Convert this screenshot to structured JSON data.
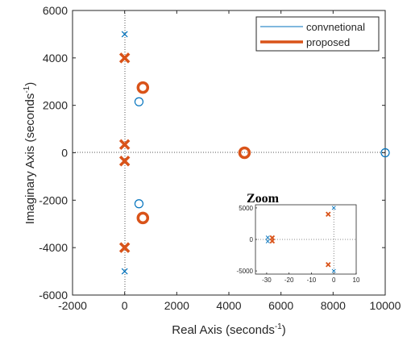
{
  "chart_data": [
    {
      "type": "scatter",
      "xlabel": "Real Axis (seconds",
      "ylabel": "Imaginary Axis (seconds",
      "label_unit_exponent": "-1",
      "xlim": [
        -2000,
        10000
      ],
      "ylim": [
        -6000,
        6000
      ],
      "xticks": [
        "-2000",
        "0",
        "2000",
        "4000",
        "6000",
        "8000",
        "10000"
      ],
      "yticks": [
        "6000",
        "4000",
        "2000",
        "0",
        "-2000",
        "-4000",
        "-6000"
      ],
      "legend_position": "top-right",
      "reference_lines": "dotted lines at x = 0 and y = 0",
      "series": [
        {
          "name": "convnetional",
          "color": "#0072BD",
          "poles": [
            [
              0,
              5000
            ],
            [
              0,
              -5000
            ]
          ],
          "zeros": [
            [
              550,
              2150
            ],
            [
              550,
              -2150
            ],
            [
              10000,
              0
            ]
          ]
        },
        {
          "name": "proposed",
          "color": "#D95319",
          "poles": [
            [
              0,
              4000
            ],
            [
              0,
              350
            ],
            [
              0,
              -350
            ],
            [
              0,
              -4000
            ]
          ],
          "zeros": [
            [
              700,
              2750
            ],
            [
              700,
              -2750
            ],
            [
              4600,
              0
            ]
          ]
        }
      ]
    },
    {
      "type": "scatter",
      "title": "Zoom",
      "xlim": [
        -35,
        10
      ],
      "ylim": [
        -5500,
        5500
      ],
      "xticks": [
        "-30",
        "-20",
        "-10",
        "0",
        "10"
      ],
      "yticks": [
        "5000",
        "0",
        "-5000"
      ],
      "series": [
        {
          "name": "convnetional",
          "color": "#0072BD",
          "poles": [
            [
              -29.5,
              300
            ],
            [
              -29.5,
              -300
            ],
            [
              0,
              5000
            ],
            [
              0,
              -5000
            ]
          ]
        },
        {
          "name": "proposed",
          "color": "#D95319",
          "poles": [
            [
              -27.5,
              250
            ],
            [
              -27.5,
              -250
            ],
            [
              -2.5,
              4000
            ],
            [
              -2.5,
              -4000
            ]
          ]
        }
      ]
    }
  ]
}
